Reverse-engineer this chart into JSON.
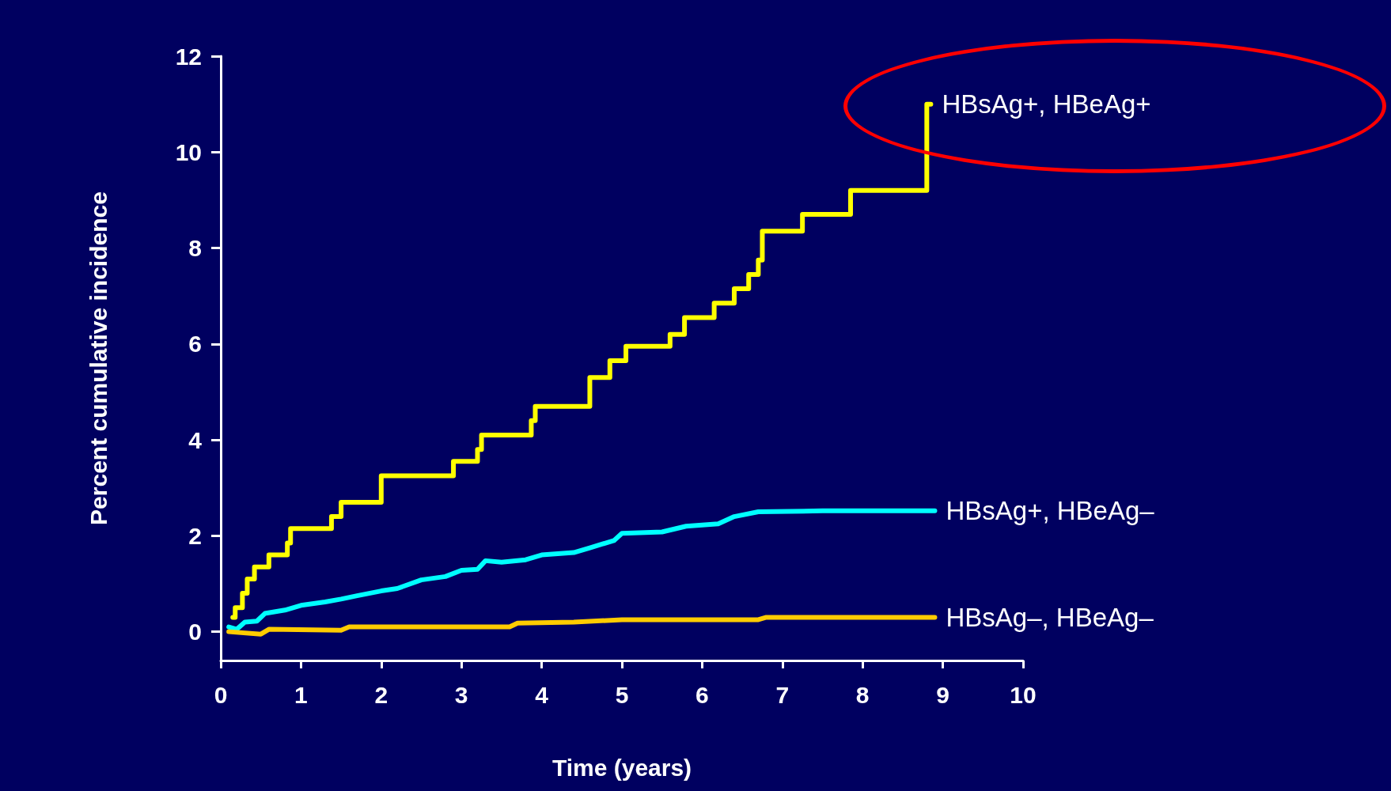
{
  "chart_data": {
    "type": "line",
    "xlabel": "Time (years)",
    "ylabel": "Percent cumulative incidence",
    "xlim": [
      0,
      10
    ],
    "xticks": [
      0,
      1,
      2,
      3,
      4,
      5,
      6,
      7,
      8,
      9,
      10
    ],
    "ylim": [
      -0.6,
      12
    ],
    "yticks": [
      0,
      2,
      4,
      6,
      8,
      10,
      12
    ],
    "grid": false,
    "legend": false,
    "marker": "none",
    "line_style": "solid",
    "series": [
      {
        "name": "HBsAg+, HBeAg+",
        "type": "step",
        "color": "#ffff00",
        "x": [
          0.15,
          0.18,
          0.27,
          0.33,
          0.42,
          0.6,
          0.83,
          0.87,
          1.38,
          1.5,
          2.0,
          2.9,
          3.2,
          3.25,
          3.87,
          3.92,
          4.6,
          4.85,
          5.05,
          5.6,
          5.78,
          6.15,
          6.4,
          6.58,
          6.7,
          6.75,
          7.25,
          7.85,
          8.8,
          8.85
        ],
        "values": [
          0.3,
          0.5,
          0.8,
          1.1,
          1.35,
          1.6,
          1.85,
          2.15,
          2.4,
          2.7,
          3.25,
          3.55,
          3.8,
          4.1,
          4.4,
          4.7,
          5.3,
          5.65,
          5.95,
          6.2,
          6.55,
          6.85,
          7.15,
          7.45,
          7.75,
          8.35,
          8.7,
          9.2,
          11.0,
          11.0
        ]
      },
      {
        "name": "HBsAg+, HBeAg–",
        "color": "#00ffff",
        "x": [
          0.1,
          0.2,
          0.3,
          0.45,
          0.55,
          0.8,
          1.0,
          1.3,
          1.5,
          1.7,
          2.0,
          2.2,
          2.5,
          2.8,
          3.0,
          3.2,
          3.3,
          3.5,
          3.8,
          4.0,
          4.4,
          4.6,
          4.9,
          5.0,
          5.5,
          5.8,
          6.2,
          6.4,
          6.7,
          7.5,
          8.9
        ],
        "values": [
          0.1,
          0.05,
          0.2,
          0.22,
          0.38,
          0.45,
          0.55,
          0.62,
          0.68,
          0.75,
          0.85,
          0.9,
          1.08,
          1.15,
          1.28,
          1.3,
          1.48,
          1.45,
          1.5,
          1.6,
          1.65,
          1.75,
          1.9,
          2.05,
          2.08,
          2.2,
          2.25,
          2.4,
          2.5,
          2.52,
          2.52
        ]
      },
      {
        "name": "HBsAg–, HBeAg–",
        "color": "#ffcc00",
        "x": [
          0.1,
          0.5,
          0.6,
          1.5,
          1.6,
          3.6,
          3.7,
          4.4,
          5.0,
          6.7,
          6.8,
          8.9
        ],
        "values": [
          0.0,
          -0.05,
          0.05,
          0.03,
          0.1,
          0.1,
          0.18,
          0.2,
          0.25,
          0.25,
          0.3,
          0.3
        ]
      }
    ]
  }
}
